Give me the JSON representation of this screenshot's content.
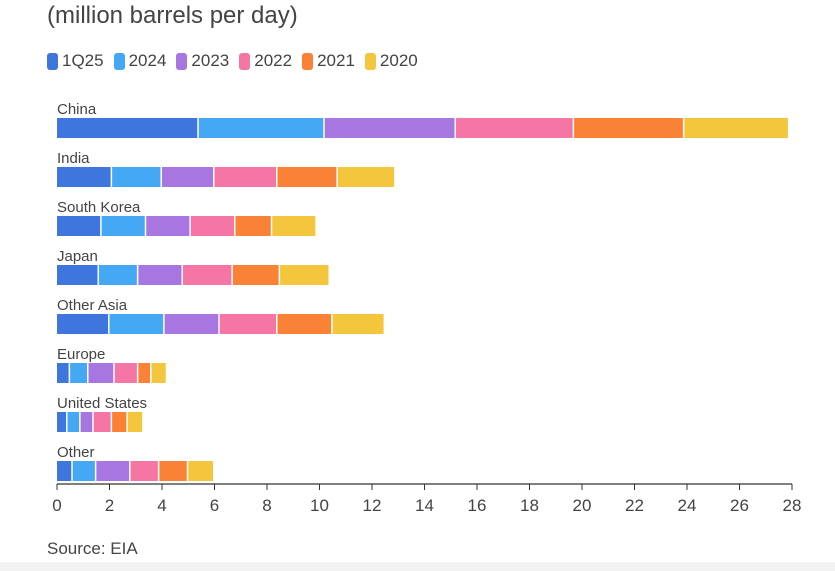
{
  "subtitle": "(million barrels per day)",
  "source": "Source: EIA",
  "colors": {
    "1Q25": "#3f76dd",
    "2024": "#45a8f5",
    "2023": "#a876e0",
    "2022": "#f576a5",
    "2021": "#fa8236",
    "2020": "#f4c63e",
    "axis": "#333333",
    "text": "#444444"
  },
  "chart_data": {
    "type": "bar",
    "orientation": "horizontal",
    "stacked": true,
    "title": "",
    "subtitle": "(million barrels per day)",
    "xlabel": "",
    "ylabel": "",
    "xlim": [
      0,
      28
    ],
    "xticks": [
      0,
      2,
      4,
      6,
      8,
      10,
      12,
      14,
      16,
      18,
      20,
      22,
      24,
      26,
      28
    ],
    "grid": false,
    "legend_position": "top-left",
    "categories": [
      "China",
      "India",
      "South Korea",
      "Japan",
      "Other Asia",
      "Europe",
      "United States",
      "Other"
    ],
    "series": [
      {
        "name": "1Q25",
        "values": [
          5.4,
          2.1,
          1.7,
          1.6,
          2.0,
          0.5,
          0.4,
          0.6
        ]
      },
      {
        "name": "2024",
        "values": [
          4.8,
          1.9,
          1.7,
          1.5,
          2.1,
          0.7,
          0.5,
          0.9
        ]
      },
      {
        "name": "2023",
        "values": [
          5.0,
          2.0,
          1.7,
          1.7,
          2.1,
          1.0,
          0.5,
          1.3
        ]
      },
      {
        "name": "2022",
        "values": [
          4.5,
          2.4,
          1.7,
          1.9,
          2.2,
          0.9,
          0.7,
          1.1
        ]
      },
      {
        "name": "2021",
        "values": [
          4.2,
          2.3,
          1.4,
          1.8,
          2.1,
          0.5,
          0.6,
          1.1
        ]
      },
      {
        "name": "2020",
        "values": [
          4.0,
          2.2,
          1.7,
          1.9,
          2.0,
          0.6,
          0.6,
          1.0
        ]
      }
    ]
  }
}
